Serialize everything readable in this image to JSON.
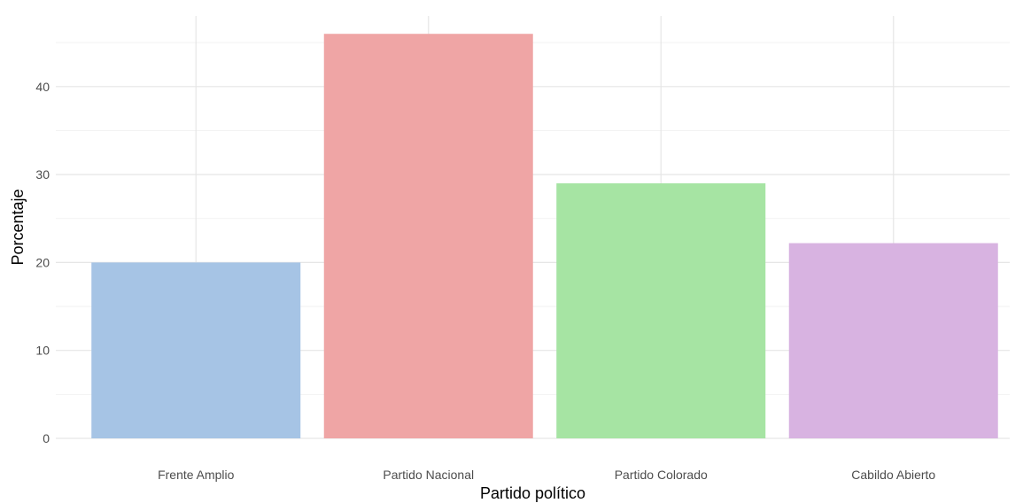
{
  "chart_data": {
    "type": "bar",
    "title": "",
    "xlabel": "Partido político",
    "ylabel": "Porcentaje",
    "categories": [
      "Frente Amplio",
      "Partido Nacional",
      "Partido Colorado",
      "Cabildo Abierto"
    ],
    "values": [
      20,
      46,
      29,
      22.2
    ],
    "colors": [
      "#a6c4e5",
      "#efa5a5",
      "#a6e4a3",
      "#d8b3e1"
    ],
    "ylim": [
      0,
      47.5
    ],
    "yticks": [
      0,
      10,
      20,
      30,
      40
    ],
    "grid": true,
    "legend": "none"
  }
}
